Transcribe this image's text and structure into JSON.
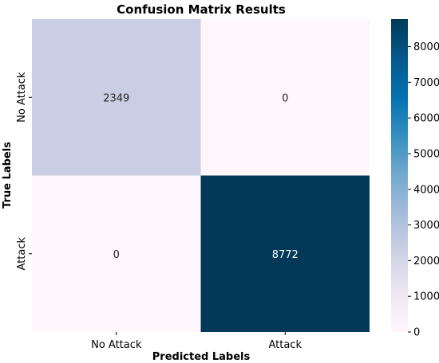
{
  "chart_data": {
    "type": "heatmap",
    "title": "Confusion Matrix Results",
    "xlabel": "Predicted Labels",
    "ylabel": "True Labels",
    "x_categories": [
      "No Attack",
      "Attack"
    ],
    "y_categories": [
      "No Attack",
      "Attack"
    ],
    "values": [
      [
        2349,
        0
      ],
      [
        0,
        8772
      ]
    ],
    "colorbar": {
      "range": [
        0,
        8772
      ],
      "ticks": [
        0,
        1000,
        2000,
        3000,
        4000,
        5000,
        6000,
        7000,
        8000
      ],
      "colormap": "PuBu",
      "low_color": "#fff7fb",
      "high_color": "#023858"
    }
  }
}
